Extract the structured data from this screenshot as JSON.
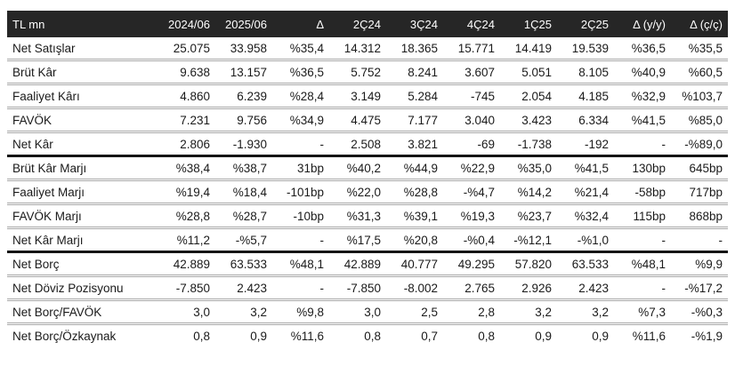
{
  "colors": {
    "header_bg": "#262626",
    "header_text": "#ffffff",
    "text": "#1a1a1a",
    "row_divider": "#a8a8a8",
    "group_divider": "#151515"
  },
  "table": {
    "unit_label": "TL mn",
    "columns": [
      "TL mn",
      "2024/06",
      "2025/06",
      "Δ",
      "2Ç24",
      "3Ç24",
      "4Ç24",
      "1Ç25",
      "2Ç25",
      "Δ (y/y)",
      "Δ (ç/ç)"
    ],
    "rows": [
      {
        "label": "Net Satışlar",
        "values": [
          "25.075",
          "33.958",
          "%35,4",
          "14.312",
          "18.365",
          "15.771",
          "14.419",
          "19.539",
          "%36,5",
          "%35,5"
        ],
        "group_end": false
      },
      {
        "label": "Brüt Kâr",
        "values": [
          "9.638",
          "13.157",
          "%36,5",
          "5.752",
          "8.241",
          "3.607",
          "5.051",
          "8.105",
          "%40,9",
          "%60,5"
        ],
        "group_end": false
      },
      {
        "label": "Faaliyet Kârı",
        "values": [
          "4.860",
          "6.239",
          "%28,4",
          "3.149",
          "5.284",
          "-745",
          "2.054",
          "4.185",
          "%32,9",
          "%103,7"
        ],
        "group_end": false
      },
      {
        "label": "FAVÖK",
        "values": [
          "7.231",
          "9.756",
          "%34,9",
          "4.475",
          "7.177",
          "3.040",
          "3.423",
          "6.334",
          "%41,5",
          "%85,0"
        ],
        "group_end": false
      },
      {
        "label": "Net Kâr",
        "values": [
          "2.806",
          "-1.930",
          "-",
          "2.508",
          "3.821",
          "-69",
          "-1.738",
          "-192",
          "-",
          "-%89,0"
        ],
        "group_end": true
      },
      {
        "label": "Brüt Kâr Marjı",
        "values": [
          "%38,4",
          "%38,7",
          "31bp",
          "%40,2",
          "%44,9",
          "%22,9",
          "%35,0",
          "%41,5",
          "130bp",
          "645bp"
        ],
        "group_end": false
      },
      {
        "label": "Faaliyet Marjı",
        "values": [
          "%19,4",
          "%18,4",
          "-101bp",
          "%22,0",
          "%28,8",
          "-%4,7",
          "%14,2",
          "%21,4",
          "-58bp",
          "717bp"
        ],
        "group_end": false
      },
      {
        "label": "FAVÖK Marjı",
        "values": [
          "%28,8",
          "%28,7",
          "-10bp",
          "%31,3",
          "%39,1",
          "%19,3",
          "%23,7",
          "%32,4",
          "115bp",
          "868bp"
        ],
        "group_end": false
      },
      {
        "label": "Net Kâr Marjı",
        "values": [
          "%11,2",
          "-%5,7",
          "-",
          "%17,5",
          "%20,8",
          "-%0,4",
          "-%12,1",
          "-%1,0",
          "-",
          "-"
        ],
        "group_end": true
      },
      {
        "label": "Net Borç",
        "values": [
          "42.889",
          "63.533",
          "%48,1",
          "42.889",
          "40.777",
          "49.295",
          "57.820",
          "63.533",
          "%48,1",
          "%9,9"
        ],
        "group_end": false
      },
      {
        "label": "Net Döviz Pozisyonu",
        "values": [
          "-7.850",
          "2.423",
          "-",
          "-7.850",
          "-8.002",
          "2.765",
          "2.926",
          "2.423",
          "-",
          "-%17,2"
        ],
        "group_end": false
      },
      {
        "label": "Net Borç/FAVÖK",
        "values": [
          "3,0",
          "3,2",
          "%9,8",
          "3,0",
          "2,5",
          "2,8",
          "3,2",
          "3,2",
          "%7,3",
          "-%0,3"
        ],
        "group_end": false
      },
      {
        "label": "Net Borç/Özkaynak",
        "values": [
          "0,8",
          "0,9",
          "%11,6",
          "0,8",
          "0,7",
          "0,8",
          "0,9",
          "0,9",
          "%11,6",
          "-%1,9"
        ],
        "group_end": false
      }
    ]
  }
}
